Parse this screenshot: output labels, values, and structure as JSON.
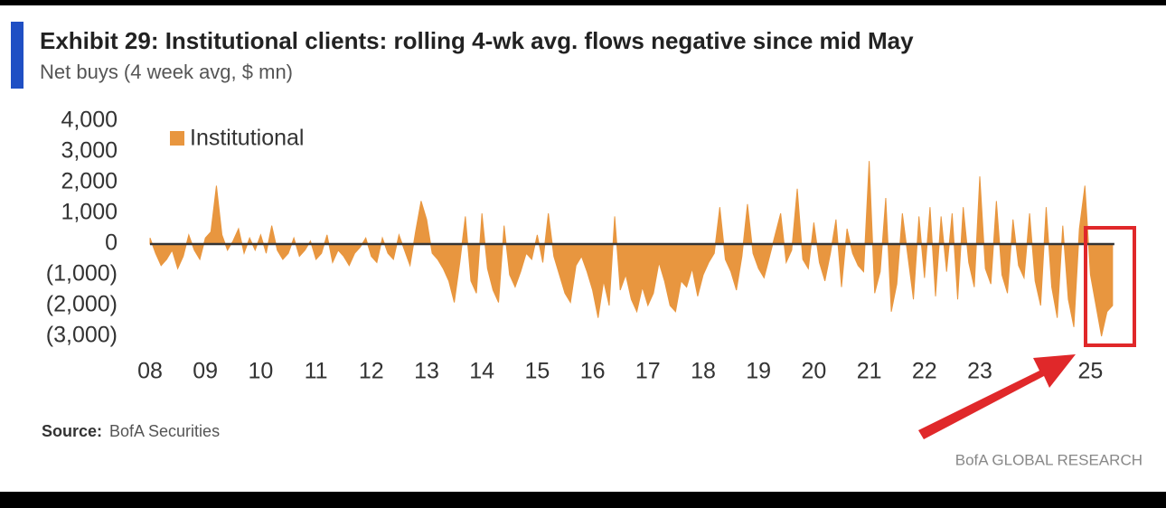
{
  "chart_data": {
    "type": "area",
    "title": "Exhibit 29: Institutional clients: rolling 4-wk avg. flows negative since mid May",
    "subtitle": "Net buys (4 week avg, $ mn)",
    "source_label": "Source:",
    "source": "BofA Securities",
    "brand": "BofA GLOBAL RESEARCH",
    "legend_position": "upper left",
    "xlim": [
      2008,
      2025.4
    ],
    "xticks": [
      {
        "value": 2008,
        "label": "08"
      },
      {
        "value": 2009,
        "label": "09"
      },
      {
        "value": 2010,
        "label": "10"
      },
      {
        "value": 2011,
        "label": "11"
      },
      {
        "value": 2012,
        "label": "12"
      },
      {
        "value": 2013,
        "label": "13"
      },
      {
        "value": 2014,
        "label": "14"
      },
      {
        "value": 2015,
        "label": "15"
      },
      {
        "value": 2016,
        "label": "16"
      },
      {
        "value": 2017,
        "label": "17"
      },
      {
        "value": 2018,
        "label": "18"
      },
      {
        "value": 2019,
        "label": "19"
      },
      {
        "value": 2020,
        "label": "20"
      },
      {
        "value": 2021,
        "label": "21"
      },
      {
        "value": 2022,
        "label": "22"
      },
      {
        "value": 2023,
        "label": "23"
      },
      {
        "value": 2025,
        "label": "25"
      }
    ],
    "ylim": [
      -3000,
      4000
    ],
    "yticks": [
      {
        "value": 4000,
        "label": "4,000"
      },
      {
        "value": 3000,
        "label": "3,000"
      },
      {
        "value": 2000,
        "label": "2,000"
      },
      {
        "value": 1000,
        "label": "1,000"
      },
      0,
      {
        "value": -1000,
        "label": "(1,000)"
      },
      {
        "value": -2000,
        "label": "(2,000)"
      },
      {
        "value": -3000,
        "label": "(3,000)"
      }
    ],
    "x": [
      2008.0,
      2008.1,
      2008.2,
      2008.3,
      2008.4,
      2008.5,
      2008.6,
      2008.7,
      2008.8,
      2008.9,
      2009.0,
      2009.1,
      2009.2,
      2009.3,
      2009.4,
      2009.5,
      2009.6,
      2009.7,
      2009.8,
      2009.9,
      2010.0,
      2010.1,
      2010.2,
      2010.3,
      2010.4,
      2010.5,
      2010.6,
      2010.7,
      2010.8,
      2010.9,
      2011.0,
      2011.1,
      2011.2,
      2011.3,
      2011.4,
      2011.5,
      2011.6,
      2011.7,
      2011.8,
      2011.9,
      2012.0,
      2012.1,
      2012.2,
      2012.3,
      2012.4,
      2012.5,
      2012.6,
      2012.7,
      2012.8,
      2012.9,
      2013.0,
      2013.1,
      2013.2,
      2013.3,
      2013.4,
      2013.5,
      2013.6,
      2013.7,
      2013.8,
      2013.9,
      2014.0,
      2014.1,
      2014.2,
      2014.3,
      2014.4,
      2014.5,
      2014.6,
      2014.7,
      2014.8,
      2014.9,
      2015.0,
      2015.1,
      2015.2,
      2015.3,
      2015.4,
      2015.5,
      2015.6,
      2015.7,
      2015.8,
      2015.9,
      2016.0,
      2016.1,
      2016.2,
      2016.3,
      2016.4,
      2016.5,
      2016.6,
      2016.7,
      2016.8,
      2016.9,
      2017.0,
      2017.1,
      2017.2,
      2017.3,
      2017.4,
      2017.5,
      2017.6,
      2017.7,
      2017.8,
      2017.9,
      2018.0,
      2018.1,
      2018.2,
      2018.3,
      2018.4,
      2018.5,
      2018.6,
      2018.7,
      2018.8,
      2018.9,
      2019.0,
      2019.1,
      2019.2,
      2019.3,
      2019.4,
      2019.5,
      2019.6,
      2019.7,
      2019.8,
      2019.9,
      2020.0,
      2020.1,
      2020.2,
      2020.3,
      2020.4,
      2020.5,
      2020.6,
      2020.7,
      2020.8,
      2020.9,
      2021.0,
      2021.1,
      2021.2,
      2021.3,
      2021.4,
      2021.5,
      2021.6,
      2021.7,
      2021.8,
      2021.9,
      2022.0,
      2022.1,
      2022.2,
      2022.3,
      2022.4,
      2022.5,
      2022.6,
      2022.7,
      2022.8,
      2022.9,
      2023.0,
      2023.1,
      2023.2,
      2023.3,
      2023.4,
      2023.5,
      2023.6,
      2023.7,
      2023.8,
      2023.9,
      2024.0,
      2024.1,
      2024.2,
      2024.3,
      2024.4,
      2024.5,
      2024.6,
      2024.7,
      2024.8,
      2024.9,
      2025.0,
      2025.1,
      2025.2,
      2025.3,
      2025.4
    ],
    "series": [
      {
        "name": "Institutional",
        "color": "#e8963f",
        "values": [
          200,
          -300,
          -700,
          -500,
          -200,
          -800,
          -400,
          300,
          -200,
          -500,
          200,
          400,
          1900,
          300,
          -200,
          100,
          500,
          -300,
          200,
          -200,
          300,
          -300,
          600,
          -200,
          -500,
          -300,
          200,
          -400,
          -200,
          100,
          -500,
          -300,
          300,
          -600,
          -200,
          -400,
          -700,
          -300,
          -100,
          200,
          -400,
          -600,
          200,
          -300,
          -500,
          300,
          -200,
          -700,
          400,
          1400,
          800,
          -300,
          -500,
          -800,
          -1200,
          -1900,
          -600,
          900,
          -1200,
          -1600,
          1000,
          -800,
          -1500,
          -1900,
          600,
          -1000,
          -1400,
          -900,
          -300,
          -500,
          300,
          -600,
          1000,
          -400,
          -1000,
          -1600,
          -1900,
          -700,
          -400,
          -900,
          -1500,
          -2400,
          -1200,
          -2000,
          900,
          -1500,
          -1000,
          -1800,
          -2200,
          -1400,
          -2000,
          -1600,
          -600,
          -1200,
          -2000,
          -2200,
          -1200,
          -1400,
          -800,
          -1700,
          -1000,
          -600,
          -300,
          1200,
          -500,
          -900,
          -1500,
          -400,
          1300,
          -300,
          -800,
          -1100,
          -400,
          300,
          1000,
          -600,
          -200,
          1800,
          -500,
          -800,
          700,
          -600,
          -1200,
          -300,
          800,
          -1400,
          500,
          -300,
          -700,
          -900,
          2700,
          -1600,
          -900,
          1500,
          -2200,
          -1300,
          1000,
          -400,
          -1800,
          900,
          -1100,
          1200,
          -1700,
          900,
          -900,
          1000,
          -1800,
          1200,
          -600,
          -1400,
          2200,
          -800,
          -1300,
          1400,
          -1000,
          -1600,
          800,
          -700,
          -1100,
          1000,
          -1200,
          -2000,
          1200,
          -1400,
          -2400,
          600,
          -1800,
          -2700,
          500,
          1900,
          -1000,
          -2000,
          -3000,
          -2200,
          -2000
        ]
      }
    ]
  }
}
